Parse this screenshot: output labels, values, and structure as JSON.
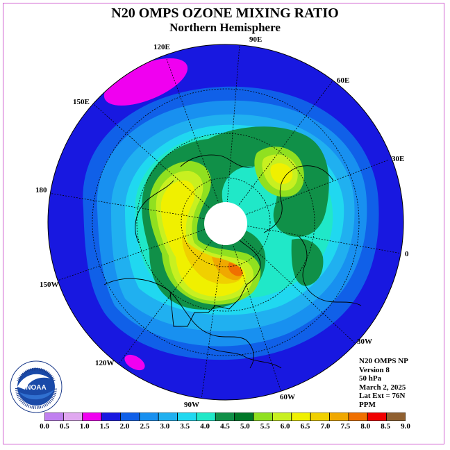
{
  "title": "N20 OMPS OZONE MIXING RATIO",
  "subtitle": "Northern Hemisphere",
  "longitude_labels": [
    "90E",
    "60E",
    "30E",
    "0",
    "30W",
    "60W",
    "90W",
    "120W",
    "150W",
    "180",
    "150E",
    "120E"
  ],
  "info": {
    "instrument": "N20 OMPS NP",
    "version": "Version 8",
    "level": "50 hPa",
    "date": "March 2, 2025",
    "lat_ext": "Lat Ext = 76N",
    "units": "PPM"
  },
  "colorbar": {
    "ticks": [
      "0.0",
      "0.5",
      "1.0",
      "1.5",
      "2.0",
      "2.5",
      "3.0",
      "3.5",
      "4.0",
      "4.5",
      "5.0",
      "5.5",
      "6.0",
      "6.5",
      "7.0",
      "7.5",
      "8.0",
      "8.5",
      "9.0"
    ],
    "colors": [
      "#c080f0",
      "#e0a8f0",
      "#f000f0",
      "#1818e0",
      "#1060e8",
      "#1890f0",
      "#20b0f0",
      "#20d8f0",
      "#20e8c8",
      "#109048",
      "#007828",
      "#90e020",
      "#c8f020",
      "#f0f000",
      "#f0d000",
      "#f0a800",
      "#f07000",
      "#f00000",
      "#906030"
    ]
  },
  "logo": {
    "name": "NOAA",
    "ring_text": "NATIONAL OCEANIC AND ATMOSPHERIC ADMINISTRATION · U.S. DEPARTMENT OF COMMERCE"
  }
}
